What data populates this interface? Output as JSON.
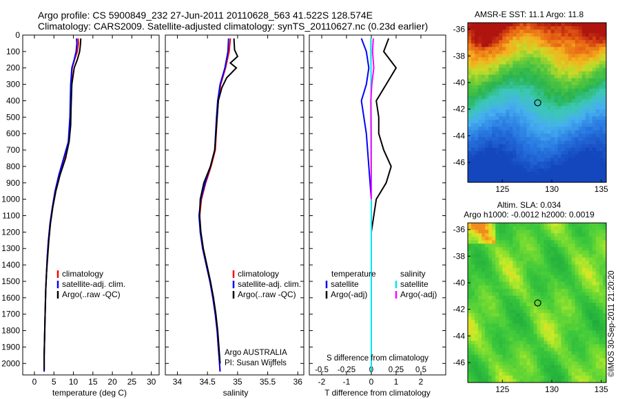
{
  "header": {
    "line1": "Argo profile: CS 5900849_232 27-Jun-2011 20110628_563 41.522S 128.574E",
    "line2": "Climatology: CARS2009. Satellite-adjusted climatology: synTS_20110627.nc (0.23d earlier)"
  },
  "colors": {
    "climatology": "#ff0000",
    "satellite": "#0000ff",
    "argo": "#000000",
    "salinity_satellite": "#00e5ee",
    "salinity_argo": "#ff00ff"
  },
  "chart_data": [
    {
      "type": "line",
      "panel": "temperature",
      "xlabel": "temperature (deg C)",
      "ylabel": "",
      "xlim": [
        -3,
        32
      ],
      "ylim": [
        2070,
        0
      ],
      "xticks": [
        0,
        5,
        10,
        15,
        20,
        25,
        30
      ],
      "yticks": [
        0,
        100,
        200,
        300,
        400,
        500,
        600,
        700,
        800,
        900,
        1000,
        1100,
        1200,
        1300,
        1400,
        1500,
        1600,
        1700,
        1800,
        1900,
        2000
      ],
      "legend": [
        "climatology",
        "satellite-adj. clim.",
        "Argo(..raw -QC)"
      ],
      "series": [
        {
          "name": "climatology",
          "x": [
            11.2,
            11.3,
            11.0,
            10.3,
            9.7,
            9.4,
            9.2,
            8.8,
            7.6,
            6.3,
            5.3,
            4.6,
            4.0,
            3.6,
            3.3,
            3.1,
            2.9,
            2.8,
            2.7,
            2.6,
            2.5,
            2.5
          ],
          "y": [
            20,
            50,
            100,
            150,
            200,
            300,
            500,
            650,
            750,
            850,
            950,
            1050,
            1150,
            1250,
            1350,
            1450,
            1550,
            1650,
            1750,
            1850,
            1950,
            2050
          ]
        },
        {
          "name": "satellite-adj. clim.",
          "x": [
            10.8,
            10.9,
            10.7,
            10.2,
            9.6,
            9.3,
            9.1,
            8.7,
            7.5,
            6.3,
            5.3,
            4.6,
            4.0,
            3.6,
            3.3,
            3.1,
            2.9,
            2.8,
            2.7,
            2.6,
            2.5,
            2.5
          ],
          "y": [
            20,
            50,
            100,
            150,
            200,
            300,
            500,
            650,
            750,
            850,
            950,
            1050,
            1150,
            1250,
            1350,
            1450,
            1550,
            1650,
            1750,
            1850,
            1950,
            2050
          ]
        },
        {
          "name": "Argo(..raw -QC)",
          "x": [
            11.9,
            11.8,
            11.6,
            11.0,
            10.2,
            9.6,
            9.4,
            9.3,
            8.9,
            8.0,
            6.6,
            5.5,
            4.7,
            4.1,
            3.7,
            3.4,
            3.1,
            2.9,
            2.8,
            2.7,
            2.6,
            2.5,
            2.5
          ],
          "y": [
            20,
            60,
            100,
            150,
            200,
            300,
            450,
            550,
            650,
            750,
            850,
            950,
            1050,
            1150,
            1250,
            1350,
            1450,
            1550,
            1650,
            1750,
            1850,
            1950,
            2040
          ]
        }
      ]
    },
    {
      "type": "line",
      "panel": "salinity",
      "xlabel": "salinity",
      "xlim": [
        33.8,
        36.1
      ],
      "ylim": [
        2070,
        0
      ],
      "xticks": [
        34,
        34.5,
        35,
        35.5,
        36
      ],
      "legend": [
        "climatology",
        "satellite-adj. clim.",
        "Argo(..raw -QC)"
      ],
      "annotation": [
        "Argo AUSTRALIA",
        "PI: Susan Wijffels"
      ],
      "series": [
        {
          "name": "climatology",
          "x": [
            34.88,
            34.86,
            34.8,
            34.72,
            34.68,
            34.66,
            34.63,
            34.56,
            34.47,
            34.4,
            34.37,
            34.38,
            34.42,
            34.48,
            34.54,
            34.59,
            34.63,
            34.66,
            34.68,
            34.7,
            34.71
          ],
          "y": [
            20,
            100,
            200,
            300,
            400,
            500,
            700,
            800,
            900,
            1000,
            1100,
            1200,
            1300,
            1400,
            1500,
            1600,
            1700,
            1800,
            1900,
            2000,
            2050
          ]
        },
        {
          "name": "satellite-adj. clim.",
          "x": [
            34.85,
            34.84,
            34.79,
            34.71,
            34.67,
            34.65,
            34.62,
            34.55,
            34.46,
            34.39,
            34.36,
            34.38,
            34.42,
            34.48,
            34.54,
            34.59,
            34.63,
            34.66,
            34.68,
            34.7,
            34.71
          ],
          "y": [
            20,
            100,
            200,
            300,
            400,
            500,
            700,
            800,
            900,
            1000,
            1100,
            1200,
            1300,
            1400,
            1500,
            1600,
            1700,
            1800,
            1900,
            2000,
            2050
          ]
        },
        {
          "name": "Argo(..raw -QC)",
          "x": [
            34.94,
            34.95,
            35.0,
            34.88,
            34.98,
            34.82,
            34.74,
            34.68,
            34.66,
            34.62,
            34.55,
            34.44,
            34.38,
            34.37,
            34.39,
            34.43,
            34.49,
            34.55,
            34.6,
            34.64,
            34.67,
            34.69,
            34.71
          ],
          "y": [
            20,
            90,
            130,
            170,
            200,
            260,
            320,
            400,
            500,
            700,
            800,
            900,
            1000,
            1100,
            1200,
            1300,
            1400,
            1500,
            1600,
            1700,
            1800,
            1900,
            2000
          ]
        }
      ]
    },
    {
      "type": "line",
      "panel": "difference",
      "xlabel": "T difference from climatology",
      "xlabel_top": "S difference from climatology",
      "xlim": [
        -2.5,
        3.0
      ],
      "ylim": [
        2070,
        0
      ],
      "xticks": [
        -2,
        -1,
        0,
        1,
        2
      ],
      "xticks_top": [
        "-0.5",
        "-0.25",
        "0",
        "0.25",
        "0.5"
      ],
      "legend_groups": [
        {
          "title": "temperature",
          "items": [
            "satellite",
            "Argo(-adj)"
          ]
        },
        {
          "title": "salinity",
          "items": [
            "satellite",
            "Argo(-adj)"
          ]
        }
      ],
      "series": [
        {
          "name": "temperature satellite",
          "x": [
            -0.4,
            -0.2,
            -0.1,
            -0.2,
            -0.4,
            -0.3,
            -0.2,
            -0.1,
            0.0,
            0.0,
            0.0,
            0.0
          ],
          "y": [
            20,
            100,
            200,
            300,
            400,
            500,
            600,
            800,
            1000,
            1200,
            1500,
            2050
          ]
        },
        {
          "name": "temperature Argo(-adj)",
          "x": [
            0.7,
            0.5,
            1.0,
            0.6,
            0.2,
            0.3,
            0.3,
            0.5,
            0.8,
            0.6,
            0.2,
            0.1,
            0.0,
            0.0,
            0.0
          ],
          "y": [
            20,
            100,
            200,
            300,
            400,
            500,
            600,
            700,
            800,
            900,
            1000,
            1100,
            1200,
            1300,
            1450
          ]
        },
        {
          "name": "salinity satellite",
          "x": [
            -0.02,
            -0.02,
            -0.01,
            -0.01,
            0.0,
            0.0,
            0.0
          ],
          "y": [
            20,
            100,
            200,
            400,
            600,
            1000,
            2050
          ]
        },
        {
          "name": "salinity Argo(-adj)",
          "x": [
            0.08,
            0.05,
            0.1,
            0.02,
            -0.02,
            -0.01,
            0.0
          ],
          "y": [
            20,
            100,
            200,
            300,
            400,
            600,
            1000
          ]
        }
      ]
    },
    {
      "type": "heatmap",
      "panel": "sst-map",
      "title": "AMSR-E SST: 11.1  Argo: 11.8",
      "xlim": [
        121.5,
        135.5
      ],
      "ylim": [
        -47.5,
        -35.5
      ],
      "xticks": [
        125,
        130,
        135
      ],
      "yticks": [
        -36,
        -38,
        -40,
        -42,
        -44,
        -46
      ],
      "marker": {
        "lon": 128.574,
        "lat": -41.522
      }
    },
    {
      "type": "heatmap",
      "panel": "sla-map",
      "title": "Altim. SLA: 0.034",
      "subtitle": "Argo h1000: -0.0012 h2000: 0.0019",
      "xlim": [
        121.5,
        135.5
      ],
      "ylim": [
        -47.5,
        -35.5
      ],
      "xticks": [
        125,
        130,
        135
      ],
      "yticks": [
        -36,
        -38,
        -40,
        -42,
        -44,
        -46
      ],
      "marker": {
        "lon": 128.574,
        "lat": -41.522
      }
    }
  ],
  "footer": {
    "stamp": "©IMOS 30-Sep-2011 21:20:20"
  }
}
